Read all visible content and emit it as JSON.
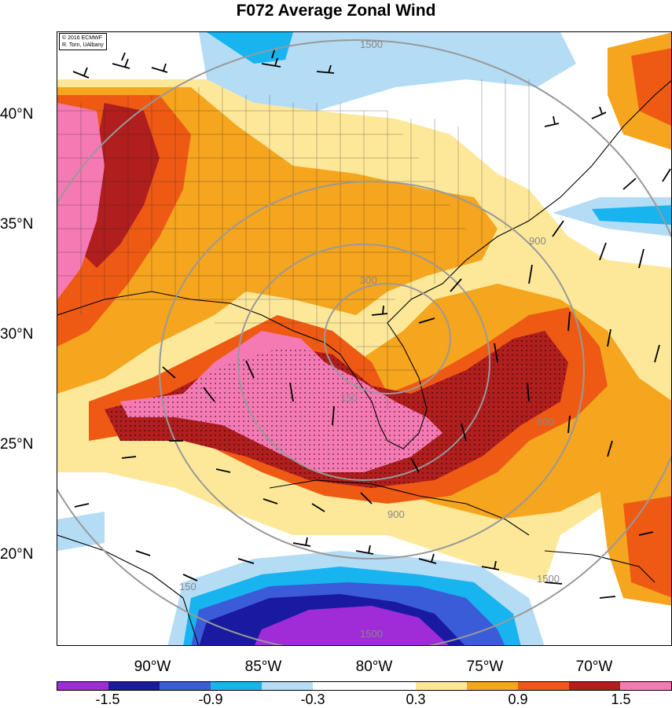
{
  "title": "F072 Average Zonal Wind",
  "credit": {
    "line1": "© 2016 ECMWF",
    "line2": "R. Torn, UAlbany"
  },
  "lat_labels": [
    "40°N",
    "35°N",
    "30°N",
    "25°N",
    "20°N"
  ],
  "lon_labels": [
    "90°W",
    "85°W",
    "80°W",
    "75°W",
    "70°W"
  ],
  "contour_labels": [
    "1500",
    "900",
    "900",
    "900",
    "300",
    "150",
    "1500",
    "1500",
    "150"
  ],
  "colorbar": {
    "colors": [
      "#a02cd8",
      "#1a1aa0",
      "#3a5cd8",
      "#18b4f0",
      "#b4dcf5",
      "#ffffff",
      "#ffffff",
      "#fde89a",
      "#f5a51e",
      "#ee5a14",
      "#b01e1e",
      "#f57ab4"
    ],
    "labels": [
      "-1.5",
      "-0.9",
      "-0.3",
      "0.3",
      "0.9",
      "1.5"
    ]
  },
  "colors": {
    "pink": "#f57ab4",
    "darkred": "#b01e1e",
    "red": "#ee5a14",
    "orange": "#f5a51e",
    "yellow": "#fde89a",
    "lightblue": "#b4dcf5",
    "blue": "#18b4f0",
    "medblue": "#3a5cd8",
    "navy": "#1a1aa0",
    "purple": "#a02cd8",
    "contour": "#999999"
  }
}
